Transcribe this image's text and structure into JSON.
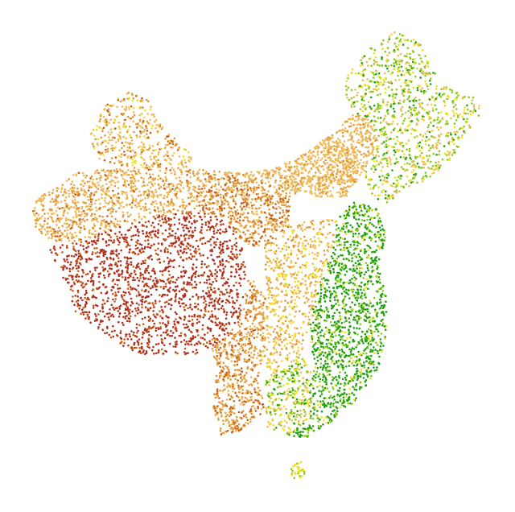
{
  "map": {
    "type": "dot-density",
    "region": "China",
    "colors": {
      "dark_red": "#b03020",
      "rust": "#c8601a",
      "orange": "#e09a3a",
      "tan": "#efbb5a",
      "yellow": "#f0e020",
      "light_green": "#8ccc20",
      "green": "#22a010"
    }
  }
}
